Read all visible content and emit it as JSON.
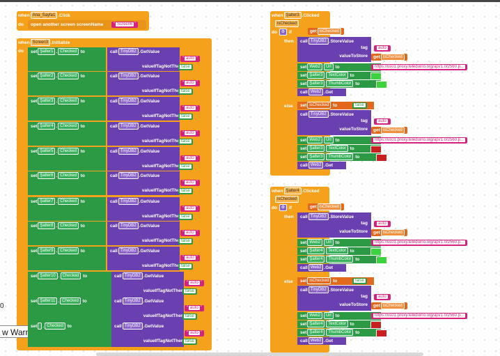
{
  "colors": {
    "orange": "#f5a11c",
    "green": "#2c9a45",
    "purple": "#6a3fb0",
    "pink": "#d8217e",
    "getorange": "#e2681d"
  },
  "workspace": {
    "left_number": "0",
    "warning_count": "0",
    "warnings_button": "w Warnings",
    "warning_icon": "error-x-icon"
  },
  "kw": {
    "when": "when",
    "do": "do",
    "set": "set",
    "to": "to",
    "call": "call",
    "if": "if",
    "then": "then",
    "else": "else",
    "dot": "."
  },
  "event1": {
    "component": "Ana_Sayfa1",
    "event": ".Click",
    "action": "open another screen  screenName",
    "screen": "Screen6"
  },
  "event2": {
    "component": "Screen3",
    "event": ".Initialize"
  },
  "init_rows": [
    {
      "sw": "Şalter1",
      "prop": "Checked",
      "db": "TinyDB2",
      "method": ".GetValue",
      "tag_label": "tag",
      "tag": "auto",
      "def_label": "valueIfTagNotThere",
      "def": "false"
    },
    {
      "sw": "Şalter2",
      "prop": "Checked",
      "db": "TinyDB2",
      "method": ".GetValue",
      "tag_label": "tag",
      "tag": "auto",
      "def_label": "valueIfTagNotThere",
      "def": "false"
    },
    {
      "sw": "Şalter3",
      "prop": "Checked",
      "db": "TinyDB2",
      "method": ".GetValue",
      "tag_label": "tag",
      "tag": "auto",
      "def_label": "valueIfTagNotThere",
      "def": "false"
    },
    {
      "sw": "Şalter4",
      "prop": "Checked",
      "db": "TinyDB2",
      "method": ".GetValue",
      "tag_label": "tag",
      "tag": "auto",
      "def_label": "valueIfTagNotThere",
      "def": "false"
    },
    {
      "sw": "Şalter5",
      "prop": "Checked",
      "db": "TinyDB2",
      "method": ".GetValue",
      "tag_label": "tag",
      "tag": "auto",
      "def_label": "valueIfTagNotThere",
      "def": "false"
    },
    {
      "sw": "Şalter6",
      "prop": "Checked",
      "db": "TinyDB2",
      "method": ".GetValue",
      "tag_label": "tag",
      "tag": "auto",
      "def_label": "valueIfTagNotThere",
      "def": "false"
    },
    {
      "sw": "Şalter7",
      "prop": "Checked",
      "db": "TinyDB2",
      "method": ".GetValue",
      "tag_label": "tag",
      "tag": "auto",
      "def_label": "valueIfTagNotThere",
      "def": "false"
    },
    {
      "sw": "Şalter8",
      "prop": "Checked",
      "db": "TinyDB2",
      "method": ".GetValue",
      "tag_label": "tag",
      "tag": "auto",
      "def_label": "valueIfTagNotThere",
      "def": "false"
    },
    {
      "sw": "Şalter9",
      "prop": "Checked",
      "db": "TinyDB2",
      "method": ".GetValue",
      "tag_label": "tag",
      "tag": "auto",
      "def_label": "valueIfTagNotThere",
      "def": "false"
    },
    {
      "sw": "Şalter10",
      "prop": "Checked",
      "db": "TinyDB2",
      "method": ".GetValue",
      "tag_label": "tag",
      "tag": "auto",
      "def_label": "valueIfTagNotThere",
      "def": "false"
    },
    {
      "sw": "Şalter11",
      "prop": "Checked",
      "db": "TinyDB2",
      "method": ".GetValue",
      "tag_label": "tag",
      "tag": "auto",
      "def_label": "valueIfTagNotThere",
      "def": "false"
    },
    {
      "sw": "",
      "prop": "Checked",
      "db": "TinyDB2",
      "method": ".GetValue",
      "tag_label": "tag",
      "tag": "auto",
      "def_label": "valueIfTagNotThere",
      "def": "false"
    }
  ],
  "events": [
    {
      "component": "Şalter3",
      "event": ".Clicked",
      "param": "isChecked",
      "get": "get",
      "getvar": "isChecked",
      "db": "TinyDB2",
      "store": ".StoreValue",
      "tag_label": "tag",
      "tag": "auto",
      "vts_label": "valueToStore",
      "web": "Web2",
      "url_prop": "Url",
      "url": "https://us01.proxy.teleduino.org/api/1.0/2560.p...",
      "text_prop": "TextColor",
      "thumb_prop": "ThumbColor",
      "getcall": ".Get",
      "false_val": "false",
      "then_text": "#3cd43c",
      "then_thumb": "#3cd43c",
      "else_text": "#c62020",
      "else_thumb": "#c62020"
    },
    {
      "component": "Şalter4",
      "event": ".Clicked",
      "param": "isChecked",
      "get": "get",
      "getvar": "isChecked",
      "db": "TinyDB2",
      "store": ".StoreValue",
      "tag_label": "tag",
      "tag": "auto",
      "vts_label": "valueToStore",
      "web": "Web2",
      "url_prop": "Url",
      "url": "https://us01.proxy.teleduino.org/api/1.0/2560.p...",
      "text_prop": "TextColor",
      "thumb_prop": "ThumbColor",
      "getcall": ".Get",
      "false_val": "false",
      "then_text": "#3cd43c",
      "then_thumb": "#3cd43c",
      "else_text": "#c62020",
      "else_thumb": "#c62020"
    }
  ]
}
